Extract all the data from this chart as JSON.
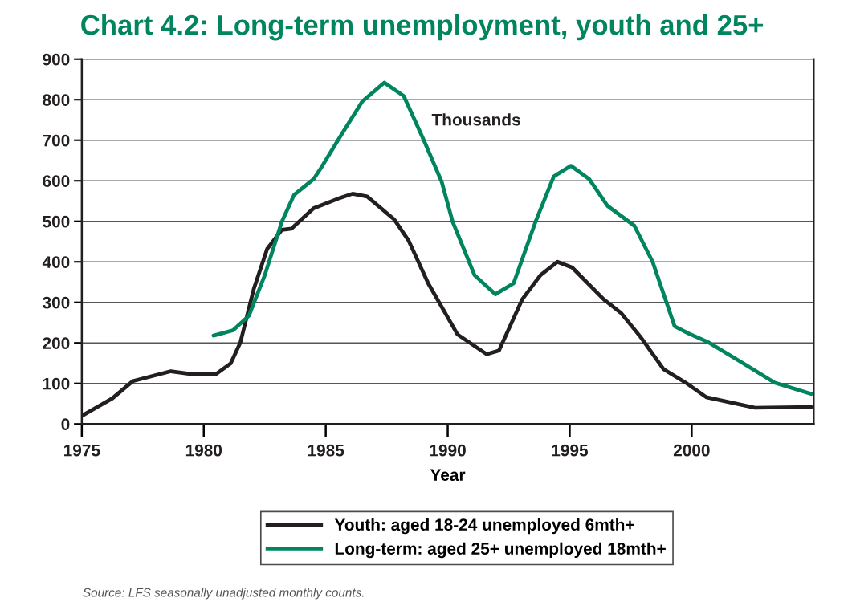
{
  "chart_data": {
    "type": "line",
    "title": "Chart 4.2: Long-term unemployment, youth and 25+",
    "xlabel": "Year",
    "annotations": [
      "Thousands",
      "Source: LFS seasonally unadjusted monthly counts."
    ],
    "series": [
      {
        "name": "Youth: aged 18-24 unemployed 6mth+",
        "color": "#231f20",
        "x": [
          1975.0,
          1976.25,
          1977.1,
          1978.65,
          1979.5,
          1980.5,
          1981.1,
          1981.5,
          1982.05,
          1982.6,
          1983.2,
          1983.6,
          1984.5,
          1985.6,
          1986.1,
          1986.7,
          1987.8,
          1988.4,
          1989.2,
          1990.4,
          1991.6,
          1992.1,
          1993.05,
          1993.8,
          1994.5,
          1995.1,
          1996.4,
          1997.1,
          1997.9,
          1998.85,
          1999.75,
          2000.6,
          2002.6,
          2004.9
        ],
        "values": [
          20,
          63,
          106,
          130,
          123,
          123,
          149,
          201,
          333,
          432,
          479,
          482,
          532,
          558,
          568,
          561,
          505,
          452,
          347,
          221,
          172,
          181,
          307,
          367,
          400,
          386,
          307,
          274,
          215,
          135,
          102,
          66,
          40,
          42
        ]
      },
      {
        "name": "Long-term: aged 25+ unemployed 18mth+",
        "color": "#00855f",
        "x": [
          1980.4,
          1981.2,
          1981.85,
          1982.5,
          1983.2,
          1983.7,
          1984.5,
          1984.8,
          1985.6,
          1986.5,
          1987.4,
          1988.2,
          1989.0,
          1989.75,
          1990.2,
          1991.1,
          1991.95,
          1992.7,
          1993.6,
          1994.35,
          1995.05,
          1995.8,
          1996.55,
          1997.65,
          1998.4,
          1999.3,
          1999.85,
          2000.7,
          2002.05,
          2003.4,
          2004.9
        ],
        "values": [
          218,
          231,
          267,
          367,
          499,
          565,
          604,
          631,
          710,
          796,
          842,
          809,
          703,
          598,
          499,
          367,
          320,
          347,
          499,
          611,
          637,
          604,
          538,
          489,
          400,
          241,
          224,
          201,
          152,
          102,
          74
        ]
      }
    ],
    "xlim": [
      1975,
      2005
    ],
    "xticks": [
      1975,
      1980,
      1985,
      1990,
      1995,
      2000
    ],
    "ylim": [
      0,
      900
    ],
    "yticks": [
      0,
      100,
      200,
      300,
      400,
      500,
      600,
      700,
      800,
      900
    ],
    "grid": "y",
    "legend": "bottom",
    "line_style": "solid",
    "marker": "none"
  }
}
